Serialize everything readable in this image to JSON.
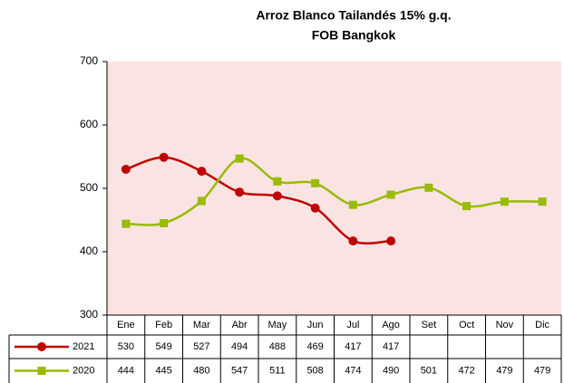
{
  "chart_data": {
    "type": "line",
    "title": "Arroz Blanco Tailandés 15% g.q.",
    "subtitle": "FOB Bangkok",
    "categories": [
      "Ene",
      "Feb",
      "Mar",
      "Abr",
      "May",
      "Jun",
      "Jul",
      "Ago",
      "Set",
      "Oct",
      "Nov",
      "Dic"
    ],
    "series": [
      {
        "name": "2021",
        "color": "#c00000",
        "marker": "circle",
        "values": [
          530,
          549,
          527,
          494,
          488,
          469,
          417,
          417,
          null,
          null,
          null,
          null
        ]
      },
      {
        "name": "2020",
        "color": "#99bb00",
        "marker": "square",
        "values": [
          444,
          445,
          480,
          547,
          511,
          508,
          474,
          490,
          501,
          472,
          479,
          479
        ]
      }
    ],
    "ylim": [
      300,
      700
    ],
    "yticks": [
      300,
      400,
      500,
      600,
      700
    ],
    "plot_background": "#f9e3e3"
  }
}
